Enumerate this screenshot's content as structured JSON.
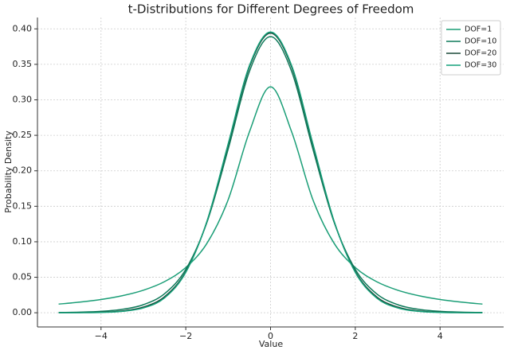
{
  "chart_data": {
    "type": "line",
    "title": "t-Distributions for Different Degrees of Freedom",
    "xlabel": "Value",
    "ylabel": "Probability Density",
    "x": [
      -5,
      -4.5,
      -4,
      -3.5,
      -3,
      -2.5,
      -2,
      -1.5,
      -1,
      -0.5,
      0,
      0.5,
      1,
      1.5,
      2,
      2.5,
      3,
      3.5,
      4,
      4.5,
      5
    ],
    "series": [
      {
        "name": "DOF=1",
        "color": "#1b9e77",
        "values": [
          0.0122,
          0.015,
          0.0187,
          0.024,
          0.0318,
          0.0439,
          0.0637,
          0.0979,
          0.1592,
          0.2546,
          0.3183,
          0.2546,
          0.1592,
          0.0979,
          0.0637,
          0.0439,
          0.0318,
          0.024,
          0.0187,
          0.015,
          0.0122
        ]
      },
      {
        "name": "DOF=10",
        "color": "#0f7a5a",
        "values": [
          0.0004,
          0.0009,
          0.002,
          0.0048,
          0.0114,
          0.0269,
          0.0611,
          0.1275,
          0.2304,
          0.3397,
          0.3891,
          0.3397,
          0.2304,
          0.1275,
          0.0611,
          0.0269,
          0.0114,
          0.0048,
          0.002,
          0.0009,
          0.0004
        ]
      },
      {
        "name": "DOF=20",
        "color": "#1d4a3a",
        "values": [
          0.0001,
          0.0003,
          0.0008,
          0.0026,
          0.008,
          0.0227,
          0.0581,
          0.1286,
          0.236,
          0.3458,
          0.394,
          0.3458,
          0.236,
          0.1286,
          0.0581,
          0.0227,
          0.008,
          0.0026,
          0.0008,
          0.0003,
          0.0001
        ]
      },
      {
        "name": "DOF=30",
        "color": "#14a07a",
        "values": [
          3e-05,
          0.0001,
          0.0005,
          0.002,
          0.0068,
          0.021,
          0.0569,
          0.129,
          0.238,
          0.3479,
          0.3956,
          0.3479,
          0.238,
          0.129,
          0.0569,
          0.021,
          0.0068,
          0.002,
          0.0005,
          0.0001,
          3e-05
        ]
      }
    ],
    "xlim": [
      -5.5,
      5.5
    ],
    "ylim": [
      -0.02,
      0.416
    ],
    "xticks": [
      {
        "value": -4,
        "label": "−4"
      },
      {
        "value": -2,
        "label": "−2"
      },
      0,
      2,
      4
    ],
    "yticks": [
      {
        "value": 0,
        "label": "0.00"
      },
      {
        "value": 0.05,
        "label": "0.05"
      },
      {
        "value": 0.1,
        "label": "0.10"
      },
      {
        "value": 0.15,
        "label": "0.15"
      },
      {
        "value": 0.2,
        "label": "0.20"
      },
      {
        "value": 0.25,
        "label": "0.25"
      },
      {
        "value": 0.3,
        "label": "0.30"
      },
      {
        "value": 0.35,
        "label": "0.35"
      },
      {
        "value": 0.4,
        "label": "0.40"
      }
    ],
    "grid": true,
    "legend": "upper right"
  }
}
